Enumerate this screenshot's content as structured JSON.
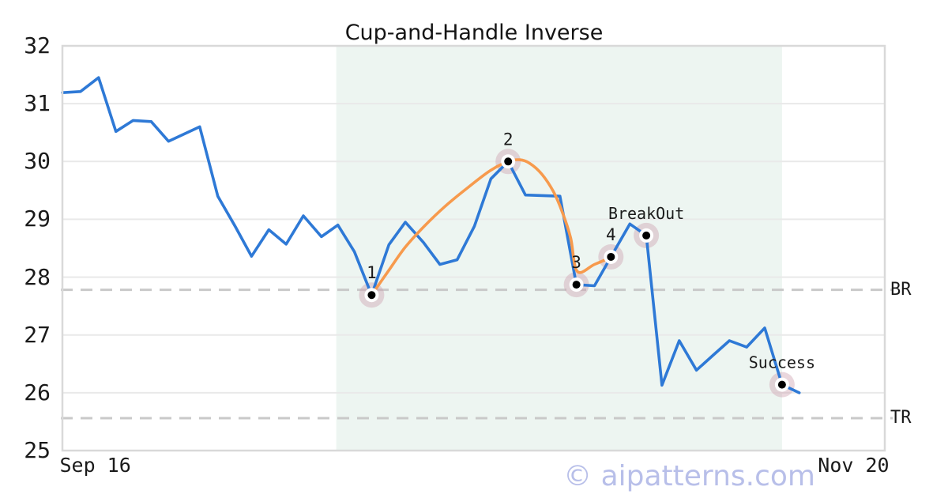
{
  "chart_data": {
    "type": "line",
    "title": "Cup-and-Handle Inverse",
    "watermark": "© aipatterns.com",
    "xlabel": "",
    "ylabel": "",
    "ylim": [
      25,
      32
    ],
    "grid": "horizontal",
    "legend_position": "none",
    "yticks": [
      25,
      26,
      27,
      28,
      29,
      30,
      31,
      32
    ],
    "xticks": [
      {
        "t": 0.04,
        "label": "Sep 16"
      },
      {
        "t": 0.962,
        "label": "Nov 20"
      }
    ],
    "levels": [
      {
        "label": "BR",
        "value": 27.78
      },
      {
        "label": "TR",
        "value": 25.56
      }
    ],
    "shaded_span": {
      "t0": 0.333,
      "t1": 0.875
    },
    "series": [
      {
        "name": "price",
        "color": "#2e79d6",
        "width": 3.6,
        "smooth": false,
        "points": [
          [
            0.0,
            31.19
          ],
          [
            0.022,
            31.21
          ],
          [
            0.044,
            31.45
          ],
          [
            0.065,
            30.52
          ],
          [
            0.086,
            30.71
          ],
          [
            0.108,
            30.69
          ],
          [
            0.129,
            30.35
          ],
          [
            0.167,
            30.6
          ],
          [
            0.189,
            29.4
          ],
          [
            0.21,
            28.88
          ],
          [
            0.23,
            28.36
          ],
          [
            0.251,
            28.82
          ],
          [
            0.272,
            28.57
          ],
          [
            0.293,
            29.06
          ],
          [
            0.315,
            28.7
          ],
          [
            0.335,
            28.9
          ],
          [
            0.355,
            28.44
          ],
          [
            0.376,
            27.69
          ],
          [
            0.397,
            28.56
          ],
          [
            0.417,
            28.95
          ],
          [
            0.439,
            28.6
          ],
          [
            0.459,
            28.22
          ],
          [
            0.48,
            28.3
          ],
          [
            0.501,
            28.88
          ],
          [
            0.521,
            29.7
          ],
          [
            0.542,
            30.0
          ],
          [
            0.563,
            29.42
          ],
          [
            0.605,
            29.4
          ],
          [
            0.625,
            27.87
          ],
          [
            0.647,
            27.85
          ],
          [
            0.667,
            28.35
          ],
          [
            0.69,
            28.92
          ],
          [
            0.71,
            28.72
          ],
          [
            0.729,
            26.13
          ],
          [
            0.75,
            26.9
          ],
          [
            0.771,
            26.39
          ],
          [
            0.792,
            26.66
          ],
          [
            0.811,
            26.9
          ],
          [
            0.832,
            26.79
          ],
          [
            0.854,
            27.12
          ],
          [
            0.875,
            26.14
          ],
          [
            0.896,
            26.0
          ]
        ]
      },
      {
        "name": "pattern-cup-and-handle",
        "color": "#f79a4d",
        "width": 3.6,
        "smooth": true,
        "points": [
          [
            0.376,
            27.69
          ],
          [
            0.397,
            28.12
          ],
          [
            0.417,
            28.52
          ],
          [
            0.44,
            28.88
          ],
          [
            0.465,
            29.22
          ],
          [
            0.494,
            29.56
          ],
          [
            0.52,
            29.84
          ],
          [
            0.542,
            30.0
          ],
          [
            0.556,
            30.03
          ],
          [
            0.568,
            29.97
          ],
          [
            0.583,
            29.78
          ],
          [
            0.597,
            29.48
          ],
          [
            0.608,
            29.12
          ],
          [
            0.618,
            28.68
          ],
          [
            0.626,
            28.1
          ],
          [
            0.647,
            28.22
          ],
          [
            0.667,
            28.34
          ]
        ]
      }
    ],
    "markers": [
      {
        "t": 0.376,
        "value": 27.69,
        "label": "1"
      },
      {
        "t": 0.542,
        "value": 30.0,
        "label": "2"
      },
      {
        "t": 0.625,
        "value": 27.87,
        "label": "3"
      },
      {
        "t": 0.667,
        "value": 28.35,
        "label": "4"
      },
      {
        "t": 0.71,
        "value": 28.72,
        "label": "BreakOut"
      },
      {
        "t": 0.875,
        "value": 26.14,
        "label": "Success"
      }
    ]
  },
  "colors": {
    "background": "#ffffff",
    "shaded_region": "#edf5f1",
    "gridline": "#e9e9e9",
    "frame": "#d9d9d9",
    "dashed_level": "#c9c9c9",
    "marker_halo": "rgba(205,160,175,0.42)",
    "marker_ring": "#ffffff",
    "marker_dot": "#000000",
    "text": "#1a1a1a",
    "watermark": "#b8bfe9"
  }
}
